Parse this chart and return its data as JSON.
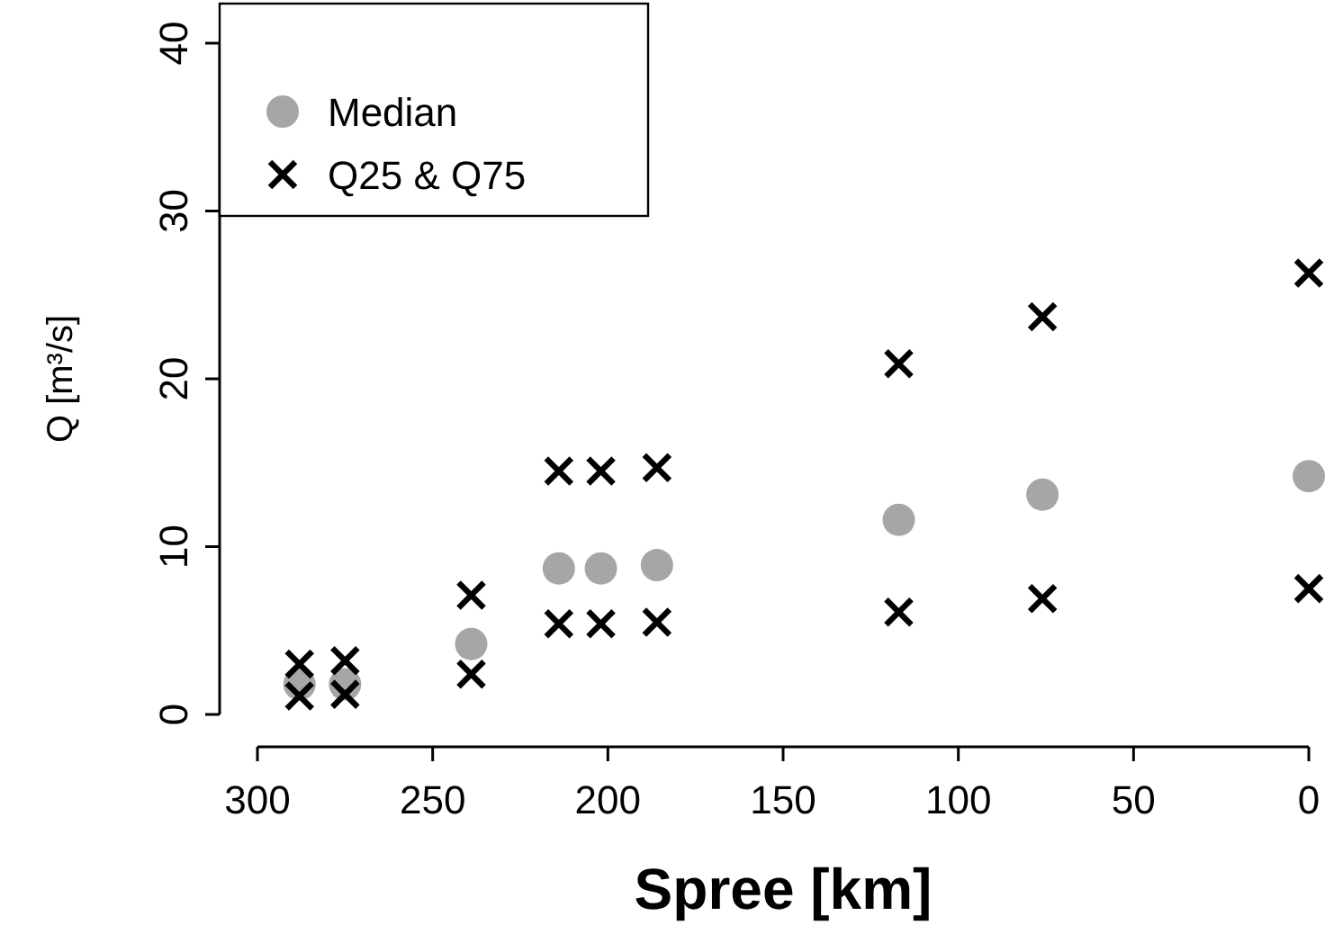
{
  "chart_data": {
    "type": "scatter",
    "xlabel": "Spree [km]",
    "ylabel": "Q [m³/s]",
    "xlim": [
      300,
      0
    ],
    "ylim": [
      0,
      40
    ],
    "xticks": [
      300,
      250,
      200,
      150,
      100,
      50,
      0
    ],
    "yticks": [
      0,
      10,
      20,
      30,
      40
    ],
    "grid": false,
    "legend": "top left",
    "series": [
      {
        "name": "Median",
        "color": "#a6a6a6",
        "marker": "circle",
        "x": [
          288,
          275,
          239,
          214,
          202,
          186,
          117,
          76,
          0
        ],
        "values": [
          1.8,
          1.8,
          4.2,
          8.7,
          8.7,
          8.9,
          11.6,
          13.1,
          14.2
        ]
      },
      {
        "name": "Q25 & Q75",
        "color": "#000000",
        "marker": "cross",
        "x": [
          288,
          288,
          275,
          275,
          239,
          239,
          214,
          214,
          202,
          202,
          186,
          186,
          117,
          117,
          76,
          76,
          0,
          0
        ],
        "values": [
          3.0,
          1.1,
          3.2,
          1.2,
          7.1,
          2.4,
          14.5,
          5.4,
          14.5,
          5.4,
          14.7,
          5.5,
          20.9,
          6.1,
          23.7,
          6.9,
          26.3,
          7.5
        ]
      }
    ]
  }
}
